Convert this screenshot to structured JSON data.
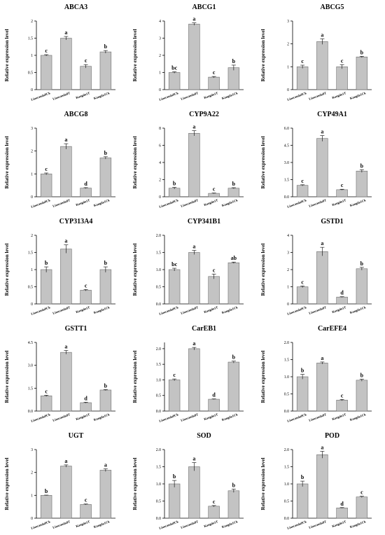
{
  "chart_data": [
    {
      "type": "bar",
      "title": "ABCA3",
      "ylabel": "Relative expression level",
      "categories": [
        "Liaocanda9Ck",
        "Liaocanda9T",
        "Kangda1T",
        "Kangda1Ck"
      ],
      "values": [
        1.0,
        1.5,
        0.68,
        1.1
      ],
      "errors": [
        0.02,
        0.05,
        0.05,
        0.04
      ],
      "letters": [
        "c",
        "a",
        "c",
        "b"
      ],
      "ylim": [
        0,
        2
      ],
      "yticks": [
        0,
        0.5,
        1,
        1.5,
        2
      ],
      "ytick_labels": [
        "0",
        "0.5",
        "1",
        "1.5",
        "2"
      ]
    },
    {
      "type": "bar",
      "title": "ABCG1",
      "ylabel": "Relative expression level",
      "categories": [
        "Liaocanda9Ck",
        "Liaocanda9T",
        "Kangda1T",
        "Kangda1Ck"
      ],
      "values": [
        1.0,
        3.82,
        0.73,
        1.28
      ],
      "errors": [
        0.04,
        0.07,
        0.04,
        0.15
      ],
      "letters": [
        "bc",
        "a",
        "c",
        "b"
      ],
      "ylim": [
        0,
        4
      ],
      "yticks": [
        0,
        1,
        2,
        3,
        4
      ],
      "ytick_labels": [
        "0",
        "1",
        "2",
        "3",
        "4"
      ]
    },
    {
      "type": "bar",
      "title": "ABCG5",
      "ylabel": "Relative expression level",
      "categories": [
        "Liaocanda9Ck",
        "Liaocanda9T",
        "Kangda1T",
        "Kangda1Ck"
      ],
      "values": [
        1.0,
        2.1,
        1.0,
        1.43
      ],
      "errors": [
        0.07,
        0.12,
        0.09,
        0.03
      ],
      "letters": [
        "c",
        "a",
        "c",
        "b"
      ],
      "ylim": [
        0,
        3
      ],
      "yticks": [
        0,
        1,
        2,
        3
      ],
      "ytick_labels": [
        "0",
        "1",
        "2",
        "3"
      ]
    },
    {
      "type": "bar",
      "title": "ABCG8",
      "ylabel": "Relative expression level",
      "categories": [
        "Liaocanda9Ck",
        "Liaocanda9T",
        "Kangda1T",
        "Kangda1Ck"
      ],
      "values": [
        1.0,
        2.2,
        0.38,
        1.7
      ],
      "errors": [
        0.04,
        0.12,
        0.02,
        0.05
      ],
      "letters": [
        "c",
        "a",
        "d",
        "b"
      ],
      "ylim": [
        0,
        3
      ],
      "yticks": [
        0,
        1,
        2,
        3
      ],
      "ytick_labels": [
        "0",
        "1",
        "2",
        "3"
      ]
    },
    {
      "type": "bar",
      "title": "CYP9A22",
      "ylabel": "Relative expression level",
      "categories": [
        "Liaocanda9Ck",
        "Liaocanda9T",
        "Kangda1T",
        "Kangda1Ck"
      ],
      "values": [
        1.0,
        7.4,
        0.4,
        1.0
      ],
      "errors": [
        0.1,
        0.3,
        0.04,
        0.06
      ],
      "letters": [
        "b",
        "a",
        "c",
        "b"
      ],
      "ylim": [
        0,
        8
      ],
      "yticks": [
        0,
        2,
        4,
        6,
        8
      ],
      "ytick_labels": [
        "0",
        "2",
        "4",
        "6",
        "8"
      ]
    },
    {
      "type": "bar",
      "title": "CYP49A1",
      "ylabel": "Relative expression level",
      "categories": [
        "Liaocanda9Ck",
        "Liaocanda9T",
        "Kangda1T",
        "Kangda1Ck"
      ],
      "values": [
        1.0,
        5.1,
        0.62,
        2.25
      ],
      "errors": [
        0.05,
        0.25,
        0.04,
        0.12
      ],
      "letters": [
        "c",
        "a",
        "c",
        "b"
      ],
      "ylim": [
        0,
        6
      ],
      "yticks": [
        0,
        1.5,
        3,
        4.5,
        6
      ],
      "ytick_labels": [
        "0.0",
        "1.5",
        "3.0",
        "4.5",
        "6.0"
      ]
    },
    {
      "type": "bar",
      "title": "CYP313A4",
      "ylabel": "Relative expression level",
      "categories": [
        "Liaocanda9Ck",
        "Liaocanda9T",
        "Kangda1T",
        "Kangda1Ck"
      ],
      "values": [
        1.0,
        1.6,
        0.4,
        1.0
      ],
      "errors": [
        0.08,
        0.12,
        0.02,
        0.08
      ],
      "letters": [
        "b",
        "a",
        "c",
        "b"
      ],
      "ylim": [
        0,
        2
      ],
      "yticks": [
        0,
        0.5,
        1,
        1.5,
        2
      ],
      "ytick_labels": [
        "0",
        "0.5",
        "1",
        "1.5",
        "2"
      ]
    },
    {
      "type": "bar",
      "title": "CYP341B1",
      "ylabel": "Relative expression level",
      "categories": [
        "Liaocanda9Ck",
        "Liaocanda9T",
        "Kangda1T",
        "Kangda1Ck"
      ],
      "values": [
        1.0,
        1.5,
        0.8,
        1.2
      ],
      "errors": [
        0.04,
        0.06,
        0.07,
        0.02
      ],
      "letters": [
        "bc",
        "a",
        "c",
        "ab"
      ],
      "ylim": [
        0,
        2
      ],
      "yticks": [
        0,
        0.5,
        1,
        1.5,
        2
      ],
      "ytick_labels": [
        "0.0",
        "0.5",
        "1.0",
        "1.5",
        "2.0"
      ]
    },
    {
      "type": "bar",
      "title": "GSTD1",
      "ylabel": "Relative expression level",
      "categories": [
        "Liaocanda9Ck",
        "Liaocanda9T",
        "Kangda1T",
        "Kangda1Ck"
      ],
      "values": [
        1.0,
        3.05,
        0.4,
        2.05
      ],
      "errors": [
        0.05,
        0.25,
        0.02,
        0.08
      ],
      "letters": [
        "c",
        "a",
        "d",
        "b"
      ],
      "ylim": [
        0,
        4
      ],
      "yticks": [
        0,
        1,
        2,
        3,
        4
      ],
      "ytick_labels": [
        "0",
        "1",
        "2",
        "3",
        "4"
      ]
    },
    {
      "type": "bar",
      "title": "GSTT1",
      "ylabel": "Relative expression level",
      "categories": [
        "Liaocanda9Ck",
        "Liaocanda9T",
        "Kangda1T",
        "Kangda1Ck"
      ],
      "values": [
        1.0,
        3.85,
        0.55,
        1.38
      ],
      "errors": [
        0.04,
        0.12,
        0.03,
        0.03
      ],
      "letters": [
        "c",
        "a",
        "d",
        "b"
      ],
      "ylim": [
        0,
        4.5
      ],
      "yticks": [
        0,
        1.5,
        3,
        4.5
      ],
      "ytick_labels": [
        "0.0",
        "1.5",
        "3.0",
        "4.5"
      ]
    },
    {
      "type": "bar",
      "title": "CarEB1",
      "ylabel": "Relative expression level",
      "categories": [
        "Liaocanda9Ck",
        "Liaocanda9T",
        "Kangda1T",
        "Kangda1Ck"
      ],
      "values": [
        1.0,
        2.0,
        0.38,
        1.57
      ],
      "errors": [
        0.03,
        0.04,
        0.01,
        0.03
      ],
      "letters": [
        "c",
        "a",
        "d",
        "b"
      ],
      "ylim": [
        0,
        2.2
      ],
      "yticks": [
        0,
        0.5,
        1,
        1.5,
        2
      ],
      "ytick_labels": [
        "0.0",
        "0.5",
        "1.0",
        "1.5",
        "2.0"
      ]
    },
    {
      "type": "bar",
      "title": "CarEFE4",
      "ylabel": "Relative expression level",
      "categories": [
        "Liaocanda9Ck",
        "Liaocanda9T",
        "Kangda1T",
        "Kangda1Ck"
      ],
      "values": [
        1.0,
        1.4,
        0.32,
        0.9
      ],
      "errors": [
        0.07,
        0.03,
        0.02,
        0.03
      ],
      "letters": [
        "b",
        "a",
        "c",
        "b"
      ],
      "ylim": [
        0,
        2
      ],
      "yticks": [
        0,
        0.5,
        1,
        1.5,
        2
      ],
      "ytick_labels": [
        "0.0",
        "0.5",
        "1.0",
        "1.5",
        "2.0"
      ]
    },
    {
      "type": "bar",
      "title": "UGT",
      "ylabel": "Relative expression level",
      "categories": [
        "Liaocanda9Ck",
        "Liaocanda9T",
        "Kangda1T",
        "Kangda1Ck"
      ],
      "values": [
        1.0,
        2.28,
        0.6,
        2.1
      ],
      "errors": [
        0.01,
        0.05,
        0.02,
        0.06
      ],
      "letters": [
        "b",
        "a",
        "c",
        "a"
      ],
      "ylim": [
        0,
        3
      ],
      "yticks": [
        0,
        1,
        2,
        3
      ],
      "ytick_labels": [
        "0",
        "1",
        "2",
        "3"
      ]
    },
    {
      "type": "bar",
      "title": "SOD",
      "ylabel": "Relative expression level",
      "categories": [
        "Liaocanda9Ck",
        "Liaocanda9T",
        "Kangda1T",
        "Kangda1Ck"
      ],
      "values": [
        1.0,
        1.5,
        0.35,
        0.8
      ],
      "errors": [
        0.1,
        0.12,
        0.02,
        0.05
      ],
      "letters": [
        "b",
        "a",
        "c",
        "b"
      ],
      "ylim": [
        0,
        2
      ],
      "yticks": [
        0,
        0.5,
        1,
        1.5,
        2
      ],
      "ytick_labels": [
        "0.0",
        "0.5",
        "1.0",
        "1.5",
        "2.0"
      ]
    },
    {
      "type": "bar",
      "title": "POD",
      "ylabel": "Relative expression level",
      "categories": [
        "Liaocanda9Ck",
        "Liaocanda9T",
        "Kangda1T",
        "Kangda1Ck"
      ],
      "values": [
        1.0,
        1.85,
        0.3,
        0.62
      ],
      "errors": [
        0.08,
        0.1,
        0.01,
        0.02
      ],
      "letters": [
        "b",
        "a",
        "d",
        "c"
      ],
      "ylim": [
        0,
        2
      ],
      "yticks": [
        0,
        0.5,
        1,
        1.5,
        2
      ],
      "ytick_labels": [
        "0.0",
        "0.5",
        "1.0",
        "1.5",
        "2.0"
      ]
    }
  ]
}
